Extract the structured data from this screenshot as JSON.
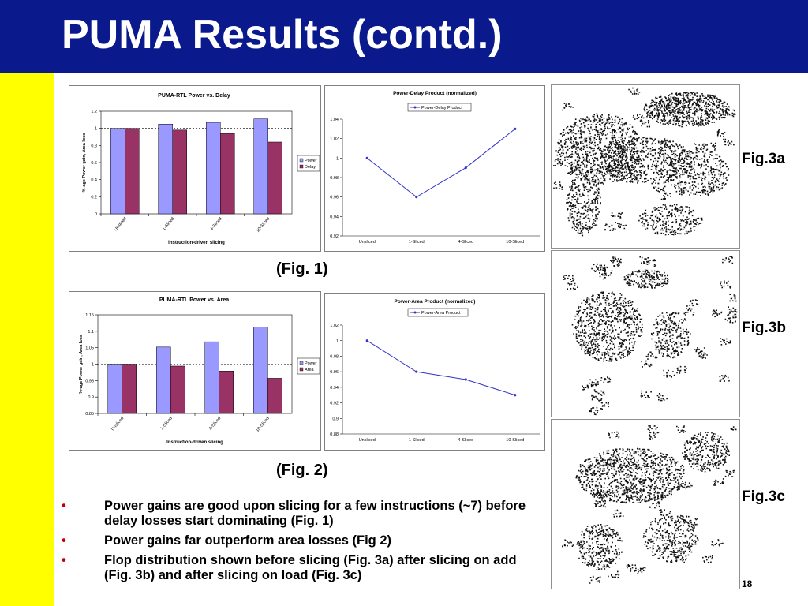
{
  "slide": {
    "title": "PUMA Results (contd.)",
    "page_number": "18",
    "colors": {
      "title_bar": "#0a1a8c",
      "side_bar": "#ffff00",
      "power": "#9999ff",
      "delay": "#993366",
      "area": "#993366",
      "line": "#3333cc",
      "bullet": "#c00000"
    }
  },
  "captions": {
    "fig1": "(Fig. 1)",
    "fig2": "(Fig. 2)"
  },
  "fig3": {
    "labels": [
      "Fig.3a",
      "Fig.3b",
      "Fig.3c"
    ],
    "icon_names": [
      "flop-distribution-before-slicing",
      "flop-distribution-slicing-on-add",
      "flop-distribution-slicing-on-load"
    ]
  },
  "bullets": [
    {
      "mark": "•",
      "text": "Power gains are good upon slicing for a few instructions (~7) before delay losses start dominating (Fig. 1)"
    },
    {
      "mark": "•",
      "text": "Power gains far outperform area losses (Fig 2)"
    },
    {
      "mark": "•",
      "text": "Flop distribution shown before slicing (Fig. 3a) after slicing on add (Fig. 3b) and after slicing on load (Fig. 3c)"
    }
  ],
  "chart_data": [
    {
      "type": "bar",
      "title": "PUMA-RTL Power vs. Delay",
      "categories": [
        "Unsliced",
        "1-Sliced",
        "4-Sliced",
        "10-Sliced"
      ],
      "series": [
        {
          "name": "Power",
          "values": [
            1.0,
            1.05,
            1.07,
            1.11
          ]
        },
        {
          "name": "Delay",
          "values": [
            1.0,
            0.98,
            0.94,
            0.84
          ]
        }
      ],
      "xlabel": "Instruction-driven slicing",
      "ylabel": "%-age Power gain, Area loss",
      "ylim": [
        0,
        1.2
      ],
      "yticks": [
        "0",
        "0.2",
        "0.4",
        "0.6",
        "0.8",
        "1",
        "1.2"
      ],
      "reference_line": 1,
      "legend": "right"
    },
    {
      "type": "line",
      "title": "Power-Delay Product (normalized)",
      "categories": [
        "Unsliced",
        "1-Sliced",
        "4-Sliced",
        "10-Sliced"
      ],
      "series": [
        {
          "name": "Power-Delay Product",
          "values": [
            1.0,
            0.96,
            0.99,
            1.03
          ]
        }
      ],
      "ylim": [
        0.92,
        1.04
      ],
      "yticks": [
        "0.92",
        "0.94",
        "0.96",
        "0.98",
        "1",
        "1.02",
        "1.04"
      ],
      "legend": "top"
    },
    {
      "type": "bar",
      "title": "PUMA-RTL Power vs. Area",
      "categories": [
        "Unsliced",
        "1-Sliced",
        "4-Sliced",
        "10-Sliced"
      ],
      "series": [
        {
          "name": "Power",
          "values": [
            1.0,
            1.052,
            1.068,
            1.113
          ]
        },
        {
          "name": "Area",
          "values": [
            1.0,
            0.994,
            0.979,
            0.957
          ]
        }
      ],
      "xlabel": "Instruction-driven slicing",
      "ylabel": "%-age Power gain, Area loss",
      "ylim": [
        0.85,
        1.15
      ],
      "yticks": [
        "0.85",
        "0.9",
        "0.95",
        "1",
        "1.05",
        "1.1",
        "1.15"
      ],
      "reference_line": 1,
      "legend": "right"
    },
    {
      "type": "line",
      "title": "Power-Area Product (normalized)",
      "categories": [
        "Unsliced",
        "1-Sliced",
        "4-Sliced",
        "10-Sliced"
      ],
      "series": [
        {
          "name": "Power-Area Product",
          "values": [
            1.0,
            0.96,
            0.95,
            0.93
          ]
        }
      ],
      "ylim": [
        0.88,
        1.02
      ],
      "yticks": [
        "0.88",
        "0.9",
        "0.92",
        "0.94",
        "0.96",
        "0.98",
        "1",
        "1.02"
      ],
      "legend": "top"
    }
  ]
}
